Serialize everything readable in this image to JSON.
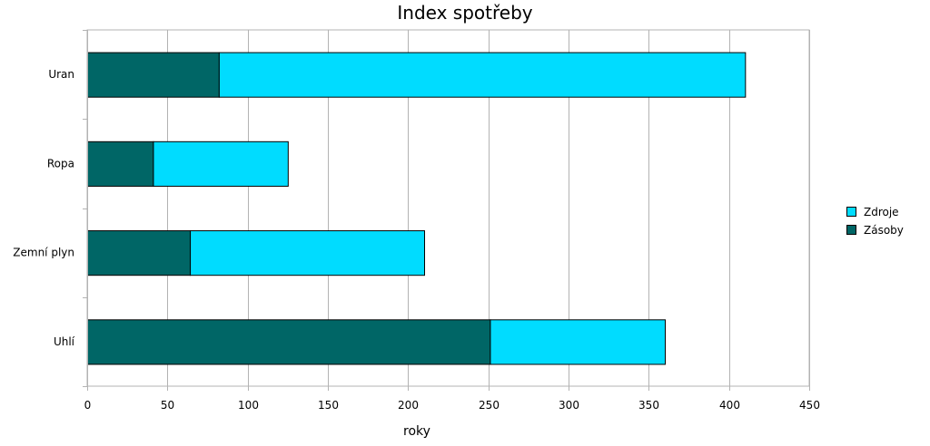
{
  "chart_data": {
    "type": "bar",
    "orientation": "horizontal",
    "stacked": true,
    "title": "Index spotřeby",
    "xlabel": "roky",
    "ylabel": "",
    "categories": [
      "Uran",
      "Ropa",
      "Zemní plyn",
      "Uhlí"
    ],
    "series": [
      {
        "name": "Zásoby",
        "values": [
          82,
          41,
          64,
          251
        ],
        "color": "#006666"
      },
      {
        "name": "Zdroje",
        "values": [
          328,
          84,
          146,
          109
        ],
        "color": "#00dcff"
      }
    ],
    "xlim": [
      0,
      450
    ],
    "xticks": [
      0,
      50,
      100,
      150,
      200,
      250,
      300,
      350,
      400,
      450
    ],
    "grid": "vertical",
    "legend": {
      "placement": "right",
      "entries": [
        "Zdroje",
        "Zásoby"
      ]
    }
  }
}
